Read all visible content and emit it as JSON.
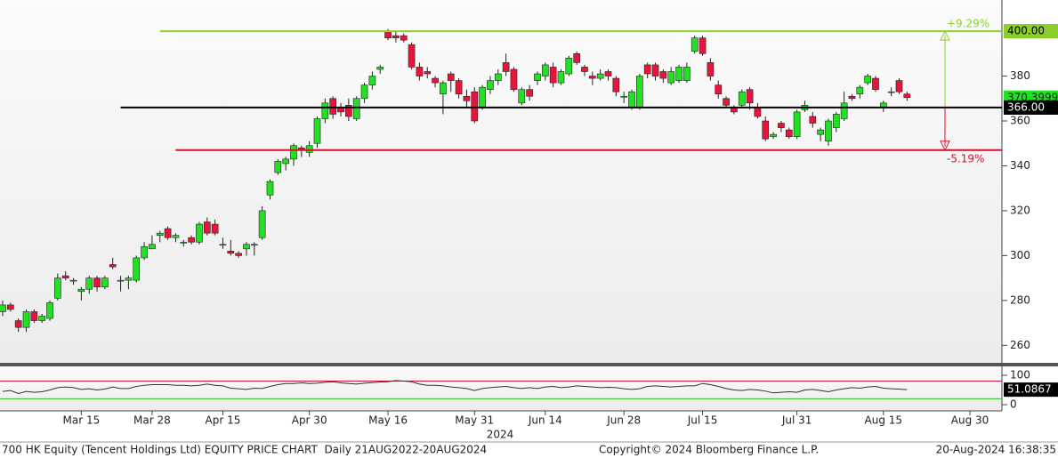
{
  "chart_data": [
    {
      "type": "candlestick",
      "title": "700 HK Equity (Tencent Holdings Ltd) EQUITY PRICE CHART  Daily 21AUG2022-20AUG2024",
      "copyright": "Copyright© 2024 Bloomberg Finance L.P.",
      "timestamp": "20-Aug-2024 16:38:35",
      "year_label": "2024",
      "x": [
        0,
        1,
        2,
        3,
        4,
        5,
        6,
        7,
        8,
        9,
        10,
        11,
        12,
        13,
        14,
        15,
        16,
        17,
        18,
        19,
        20,
        21,
        22,
        23,
        24,
        25,
        26,
        27,
        28,
        29,
        30,
        31,
        32,
        33,
        34,
        35,
        36,
        37,
        38,
        39,
        40,
        41,
        42,
        43,
        44,
        45,
        46,
        47,
        48,
        49,
        50,
        51,
        52,
        53,
        54,
        55,
        56,
        57,
        58,
        59,
        60,
        61,
        62,
        63,
        64,
        65,
        66,
        67,
        68,
        69,
        70,
        71,
        72,
        73,
        74,
        75,
        76,
        77,
        78,
        79,
        80,
        81,
        82,
        83,
        84,
        85,
        86,
        87,
        88,
        89,
        90,
        91,
        92,
        93,
        94,
        95,
        96,
        97,
        98,
        99,
        100,
        101,
        102,
        103,
        104,
        105,
        106,
        107,
        108,
        109,
        110,
        111,
        112,
        113,
        114,
        115
      ],
      "open": [
        275,
        278,
        271,
        268,
        275,
        271,
        272,
        281,
        291,
        289,
        284,
        285,
        290,
        286,
        296,
        289,
        289,
        289,
        299,
        303,
        309,
        312,
        308,
        306,
        308,
        306,
        315,
        314,
        305,
        302,
        301,
        303,
        305,
        308,
        327,
        337,
        341,
        343,
        348,
        346,
        350,
        361,
        370,
        366,
        367,
        361,
        370,
        376,
        383,
        400,
        398,
        398,
        394,
        384,
        382,
        379,
        372,
        381,
        378,
        371,
        373,
        366,
        374,
        378,
        386,
        383,
        368,
        374,
        378,
        380,
        384,
        377,
        381,
        390,
        384,
        380,
        379,
        382,
        379,
        371,
        366,
        366,
        385,
        385,
        382,
        377,
        378,
        378,
        391,
        397,
        386,
        376,
        370,
        366,
        367,
        374,
        366,
        360,
        353,
        359,
        356,
        353,
        365,
        362,
        354,
        351,
        357,
        361,
        371,
        372,
        377,
        379,
        366,
        373,
        378,
        372
      ],
      "high": [
        280,
        279,
        272,
        276,
        276,
        274,
        280,
        292,
        293,
        290,
        286,
        291,
        291,
        291,
        299,
        291,
        291,
        300,
        306,
        309,
        311,
        313,
        310,
        307,
        309,
        315,
        317,
        316,
        308,
        307,
        302,
        306,
        306,
        322,
        334,
        343,
        344,
        350,
        349,
        351,
        362,
        370,
        371,
        368,
        370,
        371,
        377,
        382,
        385,
        401,
        400,
        399,
        395,
        386,
        384,
        380,
        378,
        382,
        379,
        374,
        375,
        376,
        380,
        383,
        390,
        384,
        375,
        376,
        382,
        386,
        386,
        383,
        389,
        391,
        385,
        382,
        383,
        383,
        380,
        373,
        374,
        381,
        386,
        386,
        383,
        384,
        385,
        386,
        398,
        398,
        388,
        378,
        371,
        367,
        374,
        375,
        368,
        362,
        355,
        360,
        357,
        365,
        369,
        364,
        357,
        361,
        364,
        373,
        372,
        376,
        381,
        380,
        369,
        375,
        379,
        373
      ],
      "low": [
        273,
        275,
        266,
        266,
        270,
        270,
        271,
        280,
        289,
        287,
        280,
        283,
        284,
        285,
        294,
        284,
        285,
        288,
        298,
        303,
        306,
        307,
        306,
        304,
        305,
        305,
        309,
        309,
        303,
        300,
        299,
        300,
        300,
        307,
        325,
        336,
        338,
        340,
        344,
        344,
        348,
        359,
        361,
        362,
        360,
        360,
        368,
        374,
        381,
        396,
        395,
        395,
        383,
        378,
        379,
        375,
        363,
        373,
        370,
        366,
        359,
        365,
        372,
        376,
        380,
        373,
        367,
        369,
        376,
        378,
        375,
        376,
        380,
        385,
        380,
        376,
        378,
        378,
        371,
        368,
        365,
        365,
        379,
        378,
        377,
        376,
        377,
        377,
        390,
        389,
        378,
        370,
        366,
        363,
        366,
        365,
        361,
        351,
        352,
        355,
        352,
        352,
        364,
        357,
        351,
        349,
        355,
        360,
        369,
        370,
        376,
        373,
        364,
        371,
        372,
        369
      ],
      "close": [
        278,
        276,
        268,
        275,
        271,
        273,
        279,
        290,
        290,
        289,
        285,
        290,
        286,
        290,
        295,
        289,
        290,
        299,
        304,
        305,
        310,
        308,
        309,
        306,
        306,
        314,
        310,
        310,
        305,
        301,
        300,
        305,
        305,
        320,
        333,
        342,
        343,
        349,
        347,
        349,
        361,
        368,
        363,
        364,
        362,
        370,
        376,
        380,
        384,
        397,
        397,
        396,
        384,
        380,
        381,
        377,
        377,
        378,
        372,
        369,
        360,
        375,
        378,
        381,
        382,
        374,
        374,
        371,
        381,
        385,
        377,
        382,
        388,
        386,
        382,
        379,
        381,
        380,
        373,
        371,
        373,
        380,
        381,
        380,
        379,
        382,
        384,
        384,
        397,
        390,
        380,
        372,
        367,
        364,
        373,
        368,
        362,
        352,
        354,
        357,
        353,
        364,
        367,
        359,
        356,
        360,
        363,
        368,
        370,
        375,
        380,
        374,
        368,
        373,
        373,
        370.3999
      ],
      "last_label": "370.3999",
      "up_color": "#22e022",
      "down_color": "#e8143c",
      "xlim": [
        -0.34,
        127.07
      ],
      "xticks": [
        {
          "value": 10,
          "label": "Mar 15"
        },
        {
          "value": 19,
          "label": "Mar 28"
        },
        {
          "value": 28,
          "label": "Apr 15"
        },
        {
          "value": 39,
          "label": "Apr 30"
        },
        {
          "value": 49,
          "label": "May 16"
        },
        {
          "value": 60,
          "label": "May 31"
        },
        {
          "value": 69,
          "label": "Jun 14"
        },
        {
          "value": 79,
          "label": "Jun 28"
        },
        {
          "value": 89,
          "label": "Jul 15"
        },
        {
          "value": 101,
          "label": "Jul 31"
        },
        {
          "value": 112,
          "label": "Aug 15"
        },
        {
          "value": 123,
          "label": "Aug 30"
        }
      ],
      "ylim": [
        252.2,
        413.9
      ],
      "yticks": [
        260,
        280,
        300,
        320,
        340,
        360,
        380
      ],
      "levels": [
        {
          "value": 400,
          "label": "400.00",
          "from": 20,
          "color": "#8ccf2a",
          "annotation": "+9.29%"
        },
        {
          "value": 366,
          "label": "366.00",
          "from": 15,
          "color": "#000000"
        },
        {
          "value": 347,
          "from": 22,
          "color": "#d8102c",
          "annotation": "-5.19%"
        }
      ]
    },
    {
      "type": "line",
      "x": [
        0,
        1,
        2,
        3,
        4,
        5,
        6,
        7,
        8,
        9,
        10,
        11,
        12,
        13,
        14,
        15,
        16,
        17,
        18,
        19,
        20,
        21,
        22,
        23,
        24,
        25,
        26,
        27,
        28,
        29,
        30,
        31,
        32,
        33,
        34,
        35,
        36,
        37,
        38,
        39,
        40,
        41,
        42,
        43,
        44,
        45,
        46,
        47,
        48,
        49,
        50,
        51,
        52,
        53,
        54,
        55,
        56,
        57,
        58,
        59,
        60,
        61,
        62,
        63,
        64,
        65,
        66,
        67,
        68,
        69,
        70,
        71,
        72,
        73,
        74,
        75,
        76,
        77,
        78,
        79,
        80,
        81,
        82,
        83,
        84,
        85,
        86,
        87,
        88,
        89,
        90,
        91,
        92,
        93,
        94,
        95,
        96,
        97,
        98,
        99,
        100,
        101,
        102,
        103,
        104,
        105,
        106,
        107,
        108,
        109,
        110,
        111,
        112,
        113,
        114,
        115
      ],
      "series": [
        {
          "color": "#333333",
          "values": [
            45,
            48,
            38,
            45,
            42,
            44,
            50,
            58,
            60,
            58,
            52,
            54,
            50,
            53,
            60,
            55,
            55,
            62,
            66,
            68,
            68,
            68,
            66,
            66,
            64,
            66,
            70,
            66,
            64,
            56,
            54,
            52,
            56,
            55,
            62,
            68,
            72,
            72,
            74,
            72,
            73,
            76,
            78,
            74,
            72,
            70,
            73,
            75,
            77,
            78,
            82,
            80,
            78,
            70,
            66,
            66,
            64,
            60,
            58,
            55,
            48,
            55,
            58,
            60,
            62,
            58,
            55,
            58,
            55,
            60,
            62,
            58,
            60,
            64,
            62,
            60,
            58,
            59,
            58,
            54,
            52,
            54,
            62,
            64,
            62,
            60,
            62,
            64,
            64,
            72,
            68,
            62,
            55,
            50,
            48,
            52,
            50,
            46,
            40,
            42,
            44,
            42,
            50,
            52,
            48,
            44,
            50,
            54,
            58,
            56,
            60,
            62,
            56,
            54,
            53,
            51.0867
          ],
          "last_label": "51.0867"
        }
      ],
      "xlim": [
        -0.34,
        127.07
      ],
      "ylim": [
        -21,
        130
      ],
      "yticks": [
        0,
        100
      ],
      "upper": 80,
      "lower": 20,
      "upper_color": "#d8102c",
      "lower_color": "#22c022"
    }
  ]
}
